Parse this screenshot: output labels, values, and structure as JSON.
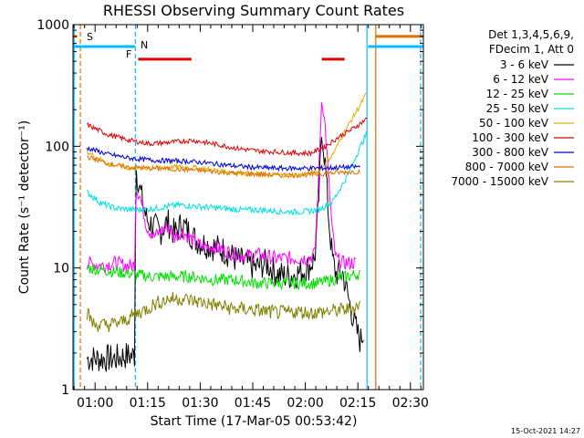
{
  "chart_data": {
    "type": "line",
    "title": "RHESSI Observing Summary Count Rates",
    "xlabel": "Start Time (17-Mar-05 00:53:42)",
    "ylabel": "Count Rate (s⁻¹ detector⁻¹)",
    "y_scale": "log",
    "ylim": [
      1,
      1000
    ],
    "x_unit": "minutes after 00:53:42",
    "xlim": [
      0,
      100
    ],
    "x_ticks": [
      {
        "label": "01:00",
        "value": 6.3
      },
      {
        "label": "01:15",
        "value": 21.3
      },
      {
        "label": "01:30",
        "value": 36.3
      },
      {
        "label": "01:45",
        "value": 51.3
      },
      {
        "label": "02:00",
        "value": 66.3
      },
      {
        "label": "02:15",
        "value": 81.3
      },
      {
        "label": "02:30",
        "value": 96.3
      }
    ],
    "y_ticks": [
      {
        "label": "1",
        "value": 1
      },
      {
        "label": "10",
        "value": 10
      },
      {
        "label": "100",
        "value": 100
      },
      {
        "label": "1000",
        "value": 1000
      }
    ],
    "legend_header": [
      "Det 1,3,4,5,6,9,",
      "FDecim 1, Att 0"
    ],
    "legend_placement": "right",
    "footer_date": "15-Oct-2021 14:27",
    "flags": [
      {
        "label": "S",
        "color": "#e07000",
        "y": 800,
        "segments": [
          [
            0,
            1.2
          ]
        ]
      },
      {
        "label": "N",
        "color": "#00bfff",
        "y": 660,
        "segments": [
          [
            0,
            17.7
          ],
          [
            84.2,
            100
          ]
        ]
      },
      {
        "label": "F",
        "color": "#e00000",
        "y": 520,
        "segments": [
          [
            18.6,
            33.8
          ],
          [
            71,
            77.5
          ]
        ]
      },
      {
        "label": "",
        "color": "#e07000",
        "y": 800,
        "segments": [
          [
            86.4,
            100
          ]
        ]
      }
    ],
    "markers": [
      {
        "x": 2.1,
        "color": "#e07000",
        "dash": true
      },
      {
        "x": 0.3,
        "color": "#00bfff",
        "dash": false
      },
      {
        "x": 17.8,
        "color": "#00bfff",
        "dash": true
      },
      {
        "x": 83.9,
        "color": "#00bfff",
        "dash": false
      },
      {
        "x": 86.4,
        "color": "#e07000",
        "dash": false
      },
      {
        "x": 99.2,
        "color": "#00bfff",
        "dash": true
      }
    ],
    "series": [
      {
        "name": "3 - 6 keV",
        "color": "#000000",
        "points": [
          [
            4,
            1.8
          ],
          [
            8,
            1.8
          ],
          [
            12,
            1.8
          ],
          [
            15,
            1.9
          ],
          [
            17.6,
            1.9
          ],
          [
            17.9,
            70
          ],
          [
            19,
            45
          ],
          [
            21,
            25
          ],
          [
            23,
            22
          ],
          [
            25,
            20
          ],
          [
            27,
            24
          ],
          [
            29,
            19
          ],
          [
            31,
            23
          ],
          [
            33,
            20
          ],
          [
            35,
            17
          ],
          [
            37,
            16
          ],
          [
            40,
            15
          ],
          [
            43,
            14
          ],
          [
            46,
            12
          ],
          [
            49,
            11
          ],
          [
            52,
            10
          ],
          [
            55,
            11
          ],
          [
            58,
            9
          ],
          [
            61,
            8.5
          ],
          [
            64,
            9
          ],
          [
            67,
            10
          ],
          [
            69,
            12
          ],
          [
            70,
            30
          ],
          [
            71,
            140
          ],
          [
            72,
            70
          ],
          [
            73,
            25
          ],
          [
            74,
            12
          ],
          [
            75,
            9
          ],
          [
            77,
            9
          ],
          [
            79,
            5
          ],
          [
            81,
            3
          ],
          [
            82,
            2.5
          ],
          [
            83,
            3
          ]
        ]
      },
      {
        "name": "6 - 12 keV",
        "color": "#ff00ff",
        "points": [
          [
            4,
            11
          ],
          [
            8,
            10.5
          ],
          [
            12,
            11
          ],
          [
            15,
            10.5
          ],
          [
            17.6,
            10.5
          ],
          [
            17.9,
            45
          ],
          [
            19,
            40
          ],
          [
            21,
            22
          ],
          [
            23,
            18
          ],
          [
            25,
            20
          ],
          [
            27,
            22
          ],
          [
            29,
            18
          ],
          [
            31,
            20
          ],
          [
            33,
            18
          ],
          [
            35,
            16
          ],
          [
            37,
            15
          ],
          [
            40,
            15
          ],
          [
            43,
            14
          ],
          [
            46,
            13
          ],
          [
            49,
            12.5
          ],
          [
            52,
            13
          ],
          [
            55,
            12.5
          ],
          [
            58,
            12
          ],
          [
            61,
            12
          ],
          [
            64,
            12
          ],
          [
            67,
            12
          ],
          [
            69,
            13
          ],
          [
            70,
            50
          ],
          [
            71,
            260
          ],
          [
            72,
            140
          ],
          [
            73,
            50
          ],
          [
            74,
            20
          ],
          [
            75,
            12
          ],
          [
            77,
            11
          ],
          [
            79,
            11
          ],
          [
            81,
            11
          ]
        ]
      },
      {
        "name": "12 - 25 keV",
        "color": "#00e000",
        "points": [
          [
            4,
            10
          ],
          [
            10,
            9.5
          ],
          [
            16,
            9
          ],
          [
            22,
            8.5
          ],
          [
            28,
            8.5
          ],
          [
            34,
            8.5
          ],
          [
            40,
            8
          ],
          [
            46,
            8
          ],
          [
            52,
            7.5
          ],
          [
            58,
            7.5
          ],
          [
            64,
            7.5
          ],
          [
            70,
            7.5
          ],
          [
            74,
            8
          ],
          [
            78,
            8.5
          ],
          [
            82,
            9
          ]
        ]
      },
      {
        "name": "25 - 50 keV",
        "color": "#00e0e0",
        "points": [
          [
            4,
            42
          ],
          [
            8,
            34
          ],
          [
            12,
            31
          ],
          [
            18,
            30
          ],
          [
            24,
            31
          ],
          [
            30,
            33
          ],
          [
            36,
            32
          ],
          [
            42,
            31
          ],
          [
            48,
            30
          ],
          [
            54,
            30
          ],
          [
            60,
            29
          ],
          [
            66,
            29
          ],
          [
            70,
            30
          ],
          [
            74,
            35
          ],
          [
            78,
            55
          ],
          [
            82,
            100
          ],
          [
            84,
            130
          ]
        ]
      },
      {
        "name": "50 - 100 keV",
        "color": "#e0b000",
        "points": [
          [
            4,
            90
          ],
          [
            10,
            72
          ],
          [
            16,
            66
          ],
          [
            22,
            66
          ],
          [
            28,
            68
          ],
          [
            34,
            67
          ],
          [
            40,
            64
          ],
          [
            46,
            61
          ],
          [
            52,
            59
          ],
          [
            58,
            58
          ],
          [
            64,
            58
          ],
          [
            70,
            62
          ],
          [
            74,
            85
          ],
          [
            78,
            140
          ],
          [
            82,
            220
          ],
          [
            84,
            280
          ]
        ]
      },
      {
        "name": "100 - 300 keV",
        "color": "#e00000",
        "points": [
          [
            4,
            150
          ],
          [
            10,
            125
          ],
          [
            16,
            112
          ],
          [
            22,
            105
          ],
          [
            28,
            108
          ],
          [
            34,
            112
          ],
          [
            40,
            105
          ],
          [
            46,
            97
          ],
          [
            52,
            92
          ],
          [
            58,
            90
          ],
          [
            64,
            88
          ],
          [
            68,
            88
          ],
          [
            72,
            100
          ],
          [
            76,
            120
          ],
          [
            80,
            140
          ],
          [
            84,
            170
          ]
        ]
      },
      {
        "name": "300 - 800 keV",
        "color": "#0000e0",
        "points": [
          [
            4,
            97
          ],
          [
            10,
            86
          ],
          [
            16,
            80
          ],
          [
            22,
            77
          ],
          [
            28,
            76
          ],
          [
            34,
            75
          ],
          [
            40,
            72
          ],
          [
            46,
            69
          ],
          [
            52,
            67
          ],
          [
            58,
            66
          ],
          [
            64,
            66
          ],
          [
            70,
            66
          ],
          [
            76,
            67
          ],
          [
            82,
            68
          ]
        ]
      },
      {
        "name": "800 - 7000 keV",
        "color": "#e07000",
        "points": [
          [
            4,
            82
          ],
          [
            10,
            72
          ],
          [
            16,
            67
          ],
          [
            22,
            66
          ],
          [
            28,
            65
          ],
          [
            34,
            64
          ],
          [
            40,
            62
          ],
          [
            46,
            60
          ],
          [
            52,
            59
          ],
          [
            58,
            58
          ],
          [
            64,
            58
          ],
          [
            70,
            59
          ],
          [
            76,
            61
          ],
          [
            82,
            62
          ]
        ]
      },
      {
        "name": "7000 - 15000 keV",
        "color": "#808000",
        "points": [
          [
            4,
            4.3
          ],
          [
            6,
            3.4
          ],
          [
            10,
            3.4
          ],
          [
            14,
            3.6
          ],
          [
            18,
            4.2
          ],
          [
            21,
            4.6
          ],
          [
            23,
            5.0
          ],
          [
            25,
            5.3
          ],
          [
            28,
            5.6
          ],
          [
            31,
            5.6
          ],
          [
            34,
            5.4
          ],
          [
            37,
            5.2
          ],
          [
            40,
            5.0
          ],
          [
            43,
            4.8
          ],
          [
            46,
            4.6
          ],
          [
            49,
            4.6
          ],
          [
            52,
            4.5
          ],
          [
            55,
            4.4
          ],
          [
            58,
            4.3
          ],
          [
            61,
            4.3
          ],
          [
            64,
            4.4
          ],
          [
            67,
            4.3
          ],
          [
            70,
            4.3
          ],
          [
            73,
            4.4
          ],
          [
            76,
            4.5
          ],
          [
            79,
            4.6
          ],
          [
            82,
            5.0
          ]
        ]
      }
    ]
  }
}
